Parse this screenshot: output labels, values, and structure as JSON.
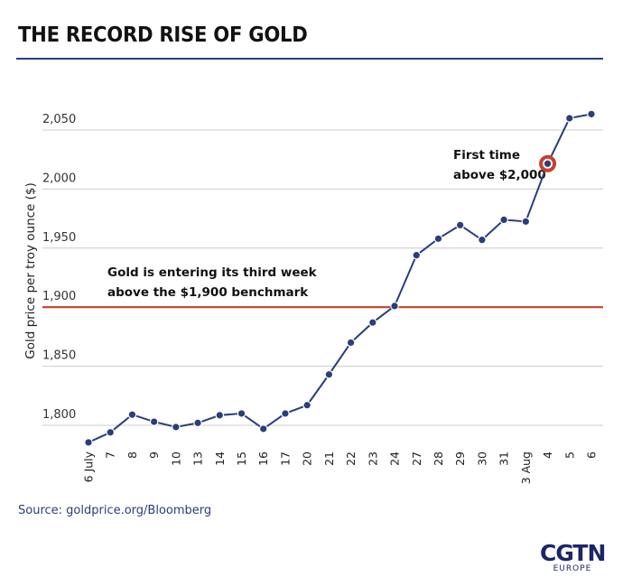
{
  "title": "THE RECORD RISE OF GOLD",
  "source": "Source: goldprice.org/Bloomberg",
  "logo": {
    "main": "CGTN",
    "sub": "EUROPE"
  },
  "colors": {
    "line": "#2a3d7c",
    "benchmark": "#c8402a",
    "grid": "#cccccc",
    "highlight": "#c8402a"
  },
  "chart_data": {
    "type": "line",
    "title": "THE RECORD RISE OF GOLD",
    "xlabel": "",
    "ylabel": "Gold price per troy ounce ($)",
    "ylim": [
      1775,
      2075
    ],
    "yticks": [
      1800,
      1850,
      1900,
      1950,
      2000,
      2050
    ],
    "ytick_labels": [
      "1,800",
      "1,850",
      "1,900",
      "1,950",
      "2,000",
      "2,050"
    ],
    "grid": true,
    "categories": [
      "6 July",
      "7",
      "8",
      "9",
      "10",
      "13",
      "14",
      "15",
      "16",
      "17",
      "20",
      "21",
      "22",
      "23",
      "24",
      "27",
      "28",
      "29",
      "30",
      "31",
      "3 Aug",
      "4",
      "5",
      "6"
    ],
    "series": [
      {
        "name": "Gold price",
        "values": [
          1785.5,
          1794,
          1809,
          1803,
          1798.5,
          1802,
          1808.5,
          1810,
          1797,
          1810,
          1817,
          1843,
          1870,
          1887,
          1901,
          1944,
          1958,
          1969.5,
          1957,
          1974,
          1972.5,
          2021.5,
          2060,
          2063.5
        ]
      }
    ],
    "reference_line": {
      "value": 1900,
      "label": "$1,900 benchmark"
    },
    "highlight_index": 21,
    "annotations": [
      {
        "lines": [
          "Gold is entering its third week",
          "above the $1,900 benchmark"
        ],
        "anchor": "benchmark"
      },
      {
        "lines": [
          "First time",
          "above $2,000"
        ],
        "anchor": "point-4-aug"
      }
    ]
  }
}
